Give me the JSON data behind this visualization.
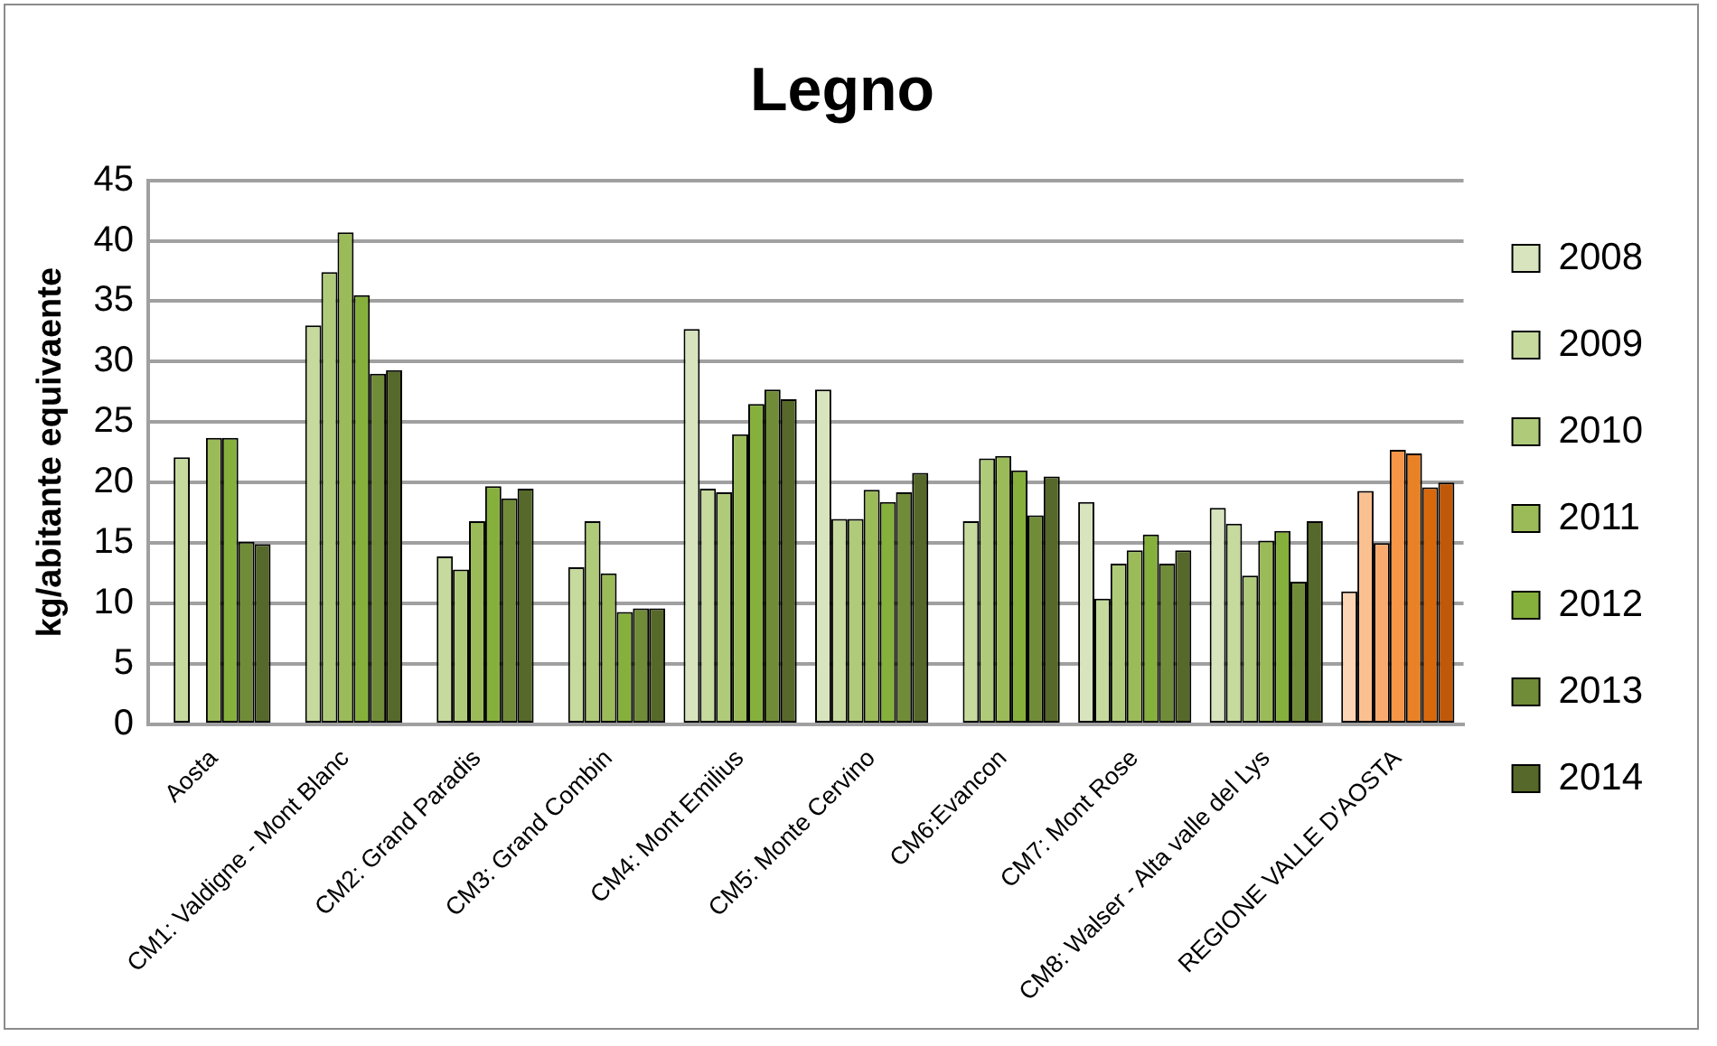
{
  "chart_data": {
    "type": "bar",
    "title": "Legno",
    "ylabel": "kg/abitante equivaente",
    "categories": [
      "Aosta",
      "CM1: Valdigne - Mont Blanc",
      "CM2: Grand Paradis",
      "CM3: Grand Combin",
      "CM4: Mont Emilius",
      "CM5: Monte Cervino",
      "CM6:Evancon",
      "CM7: Mont Rose",
      "CM8: Walser - Alta valle del Lys",
      "REGIONE VALLE D'AOSTA"
    ],
    "series": [
      {
        "name": "2008",
        "colors": [
          "#d7e4bd",
          "#d7e4bd",
          "#d7e4bd",
          "#d7e4bd",
          "#d7e4bd",
          "#d7e4bd",
          "#d7e4bd",
          "#d7e4bd",
          "#d7e4bd",
          "#fcd5b5"
        ],
        "values": [
          null,
          null,
          null,
          null,
          32.7,
          27.7,
          null,
          18.4,
          17.9,
          11.0
        ]
      },
      {
        "name": "2009",
        "colors": [
          "#c6da9e",
          "#c6da9e",
          "#c6da9e",
          "#c6da9e",
          "#c6da9e",
          "#c6da9e",
          "#c6da9e",
          "#c6da9e",
          "#c6da9e",
          "#fac090"
        ],
        "values": [
          22.1,
          33.0,
          13.9,
          13.0,
          19.5,
          17.0,
          16.8,
          10.4,
          16.6,
          19.3
        ]
      },
      {
        "name": "2010",
        "colors": [
          "#afcb7a",
          "#afcb7a",
          "#afcb7a",
          "#afcb7a",
          "#afcb7a",
          "#afcb7a",
          "#afcb7a",
          "#afcb7a",
          "#afcb7a",
          "#f9ab6f"
        ],
        "values": [
          null,
          37.4,
          12.8,
          16.8,
          19.2,
          17.0,
          22.0,
          13.3,
          12.3,
          15.0
        ]
      },
      {
        "name": "2011",
        "colors": [
          "#9bbb59",
          "#9bbb59",
          "#9bbb59",
          "#9bbb59",
          "#9bbb59",
          "#9bbb59",
          "#9bbb59",
          "#9bbb59",
          "#9bbb59",
          "#f79646"
        ],
        "values": [
          23.7,
          40.7,
          16.8,
          12.5,
          24.0,
          19.4,
          22.2,
          14.4,
          15.2,
          22.7
        ]
      },
      {
        "name": "2012",
        "colors": [
          "#86b03c",
          "#86b03c",
          "#86b03c",
          "#86b03c",
          "#86b03c",
          "#86b03c",
          "#86b03c",
          "#86b03c",
          "#86b03c",
          "#e98226"
        ],
        "values": [
          23.7,
          35.5,
          19.7,
          9.3,
          26.5,
          18.4,
          21.0,
          15.7,
          16.0,
          22.4
        ]
      },
      {
        "name": "2013",
        "colors": [
          "#718c38",
          "#718c38",
          "#718c38",
          "#718c38",
          "#718c38",
          "#718c38",
          "#718c38",
          "#718c38",
          "#718c38",
          "#d8680c"
        ],
        "values": [
          15.1,
          29.0,
          18.7,
          9.6,
          27.7,
          19.2,
          17.3,
          13.3,
          11.8,
          19.6
        ]
      },
      {
        "name": "2014",
        "colors": [
          "#56692a",
          "#56692a",
          "#56692a",
          "#56692a",
          "#56692a",
          "#56692a",
          "#56692a",
          "#56692a",
          "#56692a",
          "#c0580a"
        ],
        "values": [
          14.9,
          29.3,
          19.5,
          9.6,
          26.9,
          20.8,
          20.5,
          14.4,
          16.8,
          20.0
        ]
      }
    ],
    "ylim": [
      0,
      45
    ],
    "yticks": [
      0,
      5,
      10,
      15,
      20,
      25,
      30,
      35,
      40,
      45
    ],
    "grid": "y",
    "legend": "right"
  }
}
